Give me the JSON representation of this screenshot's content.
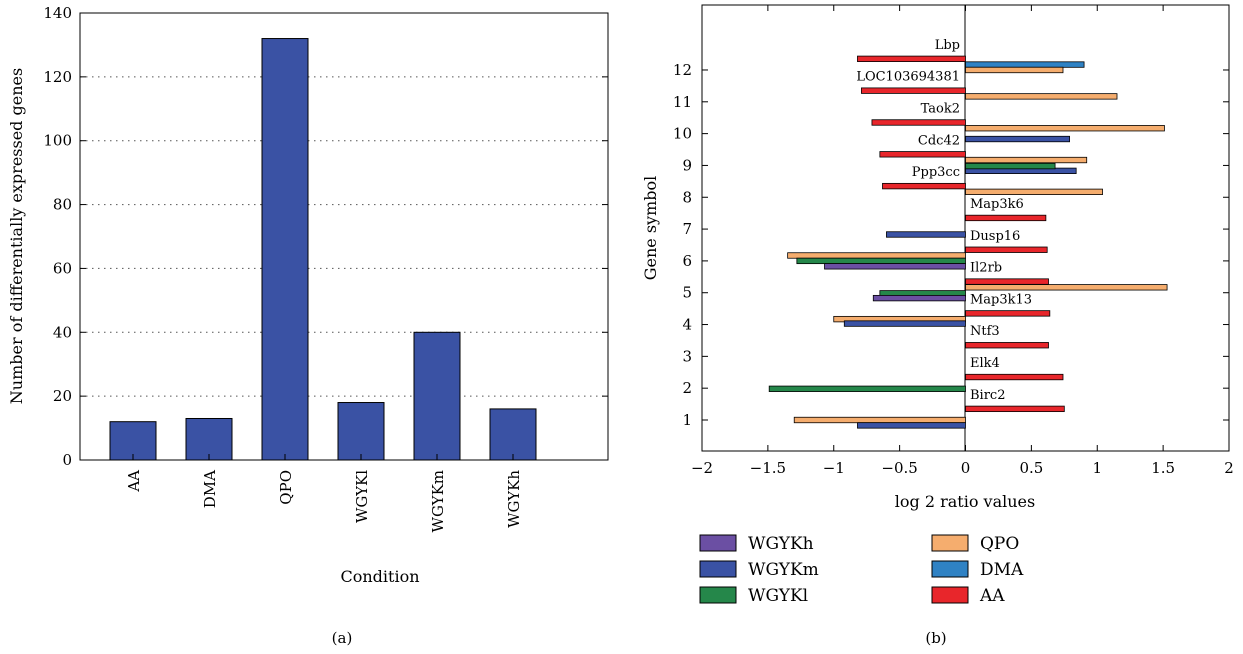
{
  "captions": {
    "a": "(a)",
    "b": "(b)"
  },
  "chart_data": [
    {
      "type": "bar",
      "categories": [
        "AA",
        "DMA",
        "QPO",
        "WGYKl",
        "WGYKm",
        "WGYKh"
      ],
      "values": [
        12,
        13,
        132,
        18,
        40,
        16
      ],
      "title": "",
      "xlabel": "Condition",
      "ylabel": "Number of differentially expressed genes",
      "ylim": [
        0,
        140
      ],
      "yticks": [
        0,
        20,
        40,
        60,
        80,
        100,
        120,
        140
      ],
      "grid": "dotted horizontal",
      "bar_color": "#3a52a4"
    },
    {
      "type": "bar",
      "orientation": "horizontal",
      "title": "",
      "xlabel": "log 2 ratio values",
      "ylabel": "Gene symbol",
      "xlim": [
        -2,
        2
      ],
      "xticks": [
        "−2",
        "−1.5",
        "−1",
        "−0.5",
        "0",
        "0.5",
        "1",
        "1.5",
        "2"
      ],
      "yticks": [
        1,
        2,
        3,
        4,
        5,
        6,
        7,
        8,
        9,
        10,
        11,
        12
      ],
      "legend_position": "bottom",
      "series": [
        {
          "name": "WGYKh",
          "color": "#6b4fa3"
        },
        {
          "name": "WGYKm",
          "color": "#3a52a4"
        },
        {
          "name": "WGYKl",
          "color": "#25874a"
        },
        {
          "name": "QPO",
          "color": "#f5ad6e"
        },
        {
          "name": "DMA",
          "color": "#2f82c4"
        },
        {
          "name": "AA",
          "color": "#e8262b"
        }
      ],
      "genes": [
        {
          "name": "Birc2",
          "bars": [
            {
              "series": "AA",
              "y": 1.35,
              "value": 0.75
            },
            {
              "series": "QPO",
              "y": 1.0,
              "value": -1.3
            },
            {
              "series": "WGYKm",
              "y": 0.83,
              "value": -0.82
            },
            {
              "series": "WGYKl",
              "y": 1.98,
              "value": -1.49
            }
          ]
        },
        {
          "name": "Elk4",
          "bars": [
            {
              "series": "AA",
              "y": 2.35,
              "value": 0.74
            }
          ]
        },
        {
          "name": "Ntf3",
          "bars": [
            {
              "series": "AA",
              "y": 3.35,
              "value": 0.63
            }
          ]
        },
        {
          "name": "Map3k13",
          "bars": [
            {
              "series": "AA",
              "y": 4.35,
              "value": 0.64
            },
            {
              "series": "QPO",
              "y": 4.17,
              "value": -1.0
            },
            {
              "series": "WGYKm",
              "y": 4.03,
              "value": -0.92
            }
          ]
        },
        {
          "name": "Il2rb",
          "bars": [
            {
              "series": "AA",
              "y": 5.35,
              "value": 0.63
            },
            {
              "series": "QPO",
              "y": 5.17,
              "value": 1.53
            },
            {
              "series": "WGYKl",
              "y": 4.98,
              "value": -0.65
            },
            {
              "series": "WGYKh",
              "y": 4.83,
              "value": -0.7
            }
          ]
        },
        {
          "name": "Dusp16",
          "bars": [
            {
              "series": "AA",
              "y": 6.35,
              "value": 0.62
            },
            {
              "series": "QPO",
              "y": 6.17,
              "value": -1.35
            },
            {
              "series": "WGYKl",
              "y": 6.0,
              "value": -1.28
            },
            {
              "series": "WGYKh",
              "y": 5.83,
              "value": -1.07
            }
          ]
        },
        {
          "name": "Map3k6",
          "bars": [
            {
              "series": "AA",
              "y": 7.35,
              "value": 0.61
            },
            {
              "series": "WGYKm",
              "y": 6.83,
              "value": -0.6
            }
          ]
        },
        {
          "name": "Ppp3cc",
          "bars": [
            {
              "series": "AA",
              "y": 8.35,
              "value": -0.63
            },
            {
              "series": "QPO",
              "y": 8.17,
              "value": 1.04
            },
            {
              "series": "WGYKm",
              "y": 8.83,
              "value": 0.84
            },
            {
              "series": "WGYKl",
              "y": 8.98,
              "value": 0.68
            }
          ]
        },
        {
          "name": "Cdc42",
          "bars": [
            {
              "series": "AA",
              "y": 9.35,
              "value": -0.65
            },
            {
              "series": "QPO",
              "y": 9.17,
              "value": 0.92
            },
            {
              "series": "WGYKm",
              "y": 9.83,
              "value": 0.79
            }
          ]
        },
        {
          "name": "Taok2",
          "bars": [
            {
              "series": "AA",
              "y": 10.35,
              "value": -0.71
            },
            {
              "series": "QPO",
              "y": 10.17,
              "value": 1.51
            }
          ]
        },
        {
          "name": "LOC103694381",
          "bars": [
            {
              "series": "AA",
              "y": 11.35,
              "value": -0.79
            },
            {
              "series": "QPO",
              "y": 11.17,
              "value": 1.15
            }
          ]
        },
        {
          "name": "Lbp",
          "bars": [
            {
              "series": "AA",
              "y": 12.35,
              "value": -0.82
            },
            {
              "series": "DMA",
              "y": 12.17,
              "value": 0.9
            },
            {
              "series": "QPO",
              "y": 12.0,
              "value": 0.74
            }
          ]
        }
      ]
    }
  ]
}
